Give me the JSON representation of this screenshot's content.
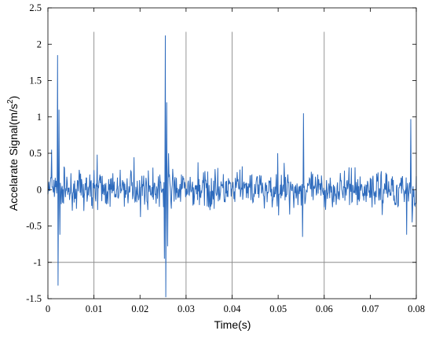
{
  "chart_data": {
    "type": "line",
    "title": "",
    "xlabel": "Time(s)",
    "ylabel": "Accelarate Signal(m/s",
    "ylabel_sup": "2",
    "ylabel_close": ")",
    "xlim": [
      0,
      0.08
    ],
    "ylim": [
      -1.5,
      2.5
    ],
    "xticks": [
      0,
      0.01,
      0.02,
      0.03,
      0.04,
      0.05,
      0.06,
      0.07,
      0.08
    ],
    "xtick_labels": [
      "0",
      "0.01",
      "0.02",
      "0.03",
      "0.04",
      "0.05",
      "0.06",
      "0.07",
      "0.08"
    ],
    "yticks": [
      -1.5,
      -1,
      -0.5,
      0,
      0.5,
      1,
      1.5,
      2,
      2.5
    ],
    "ytick_labels": [
      "-1.5",
      "-1",
      "-0.5",
      "0",
      "0.5",
      "1",
      "1.5",
      "2",
      "2.5"
    ],
    "grid": false,
    "guide_lines": {
      "vertical_x": [
        0.01,
        0.03,
        0.04,
        0.06
      ],
      "horizontal_y": [
        -1
      ]
    },
    "series_color": "#2e6bbd",
    "sampling": {
      "dt": 0.0001,
      "noise_amplitude": 0.16
    },
    "impulses": [
      {
        "x": 0.0008,
        "y": 0.55
      },
      {
        "x": 0.0021,
        "y": 1.85
      },
      {
        "x": 0.0022,
        "y": -1.32
      },
      {
        "x": 0.0024,
        "y": 1.1
      },
      {
        "x": 0.0026,
        "y": -0.62
      },
      {
        "x": 0.0253,
        "y": -0.95
      },
      {
        "x": 0.0255,
        "y": 2.12
      },
      {
        "x": 0.0256,
        "y": -1.48
      },
      {
        "x": 0.0258,
        "y": 1.2
      },
      {
        "x": 0.026,
        "y": -0.78
      },
      {
        "x": 0.0262,
        "y": 0.5
      },
      {
        "x": 0.0555,
        "y": 1.05
      },
      {
        "x": 0.0553,
        "y": -0.65
      },
      {
        "x": 0.0779,
        "y": -0.62
      },
      {
        "x": 0.0788,
        "y": 0.97
      },
      {
        "x": 0.0791,
        "y": -0.45
      }
    ]
  }
}
